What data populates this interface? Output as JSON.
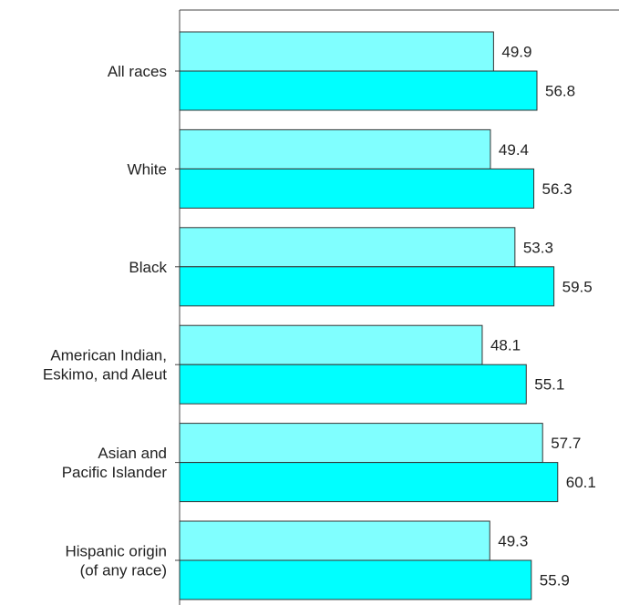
{
  "chart_data": {
    "type": "bar",
    "orientation": "horizontal",
    "categories": [
      [
        "All races"
      ],
      [
        "White"
      ],
      [
        "Black"
      ],
      [
        "American Indian,",
        "Eskimo, and Aleut"
      ],
      [
        "Asian and",
        "Pacific Islander"
      ],
      [
        "Hispanic origin",
        "(of any race)"
      ]
    ],
    "series": [
      {
        "values": [
          49.9,
          49.4,
          53.3,
          48.1,
          57.7,
          49.3
        ],
        "color": "#80ffff"
      },
      {
        "values": [
          56.8,
          56.3,
          59.5,
          55.1,
          60.1,
          55.9
        ],
        "color": "#00ffff"
      }
    ],
    "xlim": [
      0,
      70
    ],
    "grid": false,
    "legend": "none"
  }
}
